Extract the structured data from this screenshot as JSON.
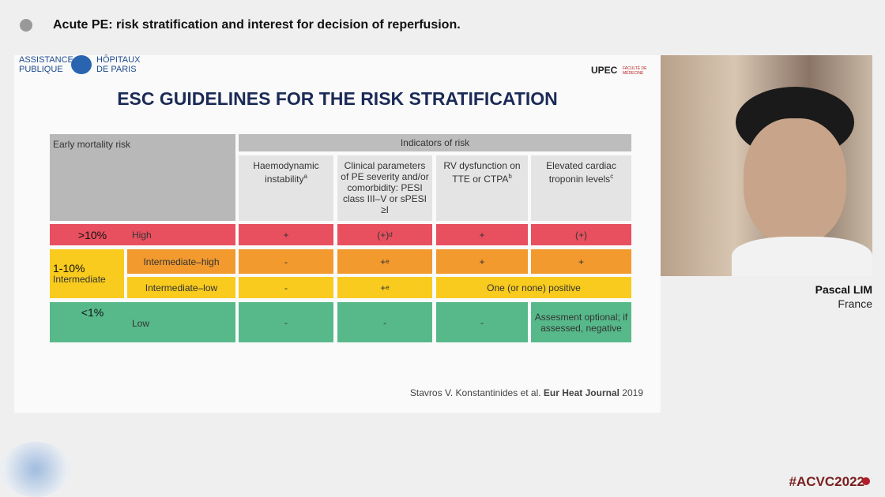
{
  "header": {
    "title": "Acute PE: risk stratification and interest for decision of reperfusion."
  },
  "slide": {
    "logo_left": [
      "ASSISTANCE",
      "PUBLIQUE",
      "HÔPITAUX",
      "DE PARIS"
    ],
    "logo_right": {
      "name": "UPEC",
      "subtitle": "FACULTÉ DE MÉDECINE"
    },
    "title": "ESC GUIDELINES FOR THE RISK STRATIFICATION",
    "table": {
      "header": {
        "risk": "Early mortality risk",
        "indicators": "Indicators of risk",
        "columns": [
          {
            "text": "Haemodynamic instability",
            "sup": "a"
          },
          {
            "text": "Clinical parameters of PE severity and/or comorbidity: PESI class III–V or sPESI ≥I"
          },
          {
            "text": "RV dysfunction on TTE or CTPA",
            "sup": "b"
          },
          {
            "text": "Elevated cardiac troponin levels",
            "sup": "c"
          }
        ]
      },
      "intermediate_group": {
        "range": "1-10%",
        "label": "Intermediate"
      },
      "rows": [
        {
          "range": ">10%",
          "label": "High",
          "cells": [
            {
              "text": "+"
            },
            {
              "text": "(+)",
              "sup": "d"
            },
            {
              "text": "+"
            },
            {
              "text": "(+)"
            }
          ]
        },
        {
          "label": "Intermediate–high",
          "cells": [
            {
              "text": "-"
            },
            {
              "text": "+",
              "sup": "e"
            },
            {
              "text": "+"
            },
            {
              "text": "+"
            }
          ]
        },
        {
          "label": "Intermediate–low",
          "cells": [
            {
              "text": "-"
            },
            {
              "text": "+",
              "sup": "e"
            },
            {
              "text": "One (or none) positive"
            }
          ]
        },
        {
          "range": "<1%",
          "label": "Low",
          "cells": [
            {
              "text": "-"
            },
            {
              "text": "-"
            },
            {
              "text": "-"
            },
            {
              "text": "Assesment optional; if assessed, negative"
            }
          ]
        }
      ]
    },
    "citation": {
      "authors": "Stavros V. Konstantinides et al.",
      "journal": "Eur Heat Journal",
      "year": "2019"
    }
  },
  "speaker": {
    "name": "Pascal LIM",
    "country": "France"
  },
  "hashtag": "#ACVC2022"
}
